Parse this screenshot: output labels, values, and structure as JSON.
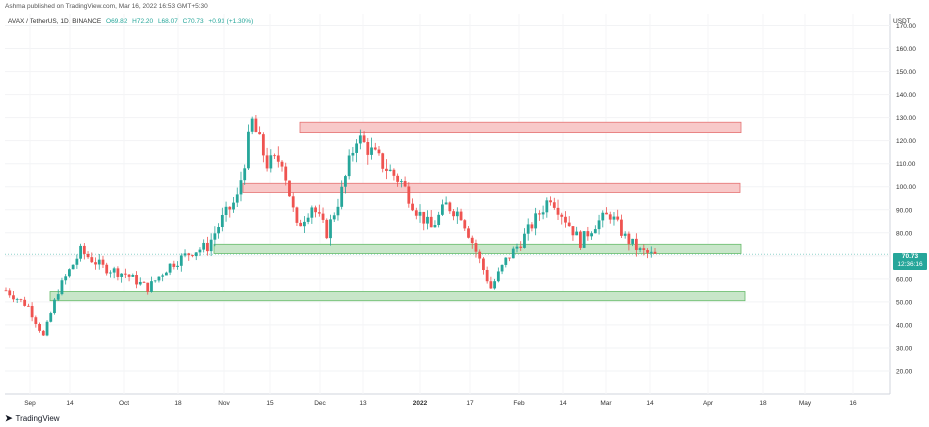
{
  "header": {
    "published": "Ashma published on TradingView.com, Mar 16, 2022 16:53 GMT+5:30"
  },
  "legend": {
    "symbol": "AVAX / TetherUS, 1D, BINANCE",
    "open": "O69.82",
    "high": "H72.20",
    "low": "L68.07",
    "close": "C70.73",
    "change": "+0.91 (+1.30%)"
  },
  "currency": "USDT",
  "last_price": {
    "value": "70.73",
    "countdown": "12:36:16"
  },
  "footer": {
    "brand": "TradingView"
  },
  "colors": {
    "up": "#26a69a",
    "down": "#ef5350",
    "resistance_zone": "#f8c9c9",
    "support_zone": "#c8e6c9"
  },
  "chart_data": {
    "type": "candlestick",
    "y_axis": {
      "min": 10,
      "max": 175,
      "ticks": [
        "20.00",
        "30.00",
        "40.00",
        "50.00",
        "60.00",
        "70.00",
        "80.00",
        "90.00",
        "100.00",
        "110.00",
        "120.00",
        "130.00",
        "140.00",
        "150.00",
        "160.00",
        "170.00"
      ]
    },
    "x_ticks": [
      "Sep",
      "14",
      "Oct",
      "18",
      "Nov",
      "15",
      "Dec",
      "13",
      "2022",
      "17",
      "Feb",
      "14",
      "Mar",
      "14",
      "Apr",
      "18",
      "May",
      "16"
    ],
    "zones": [
      {
        "kind": "resistance",
        "low": 123.5,
        "high": 128.0
      },
      {
        "kind": "resistance",
        "low": 97.5,
        "high": 101.5
      },
      {
        "kind": "support",
        "low": 71.0,
        "high": 75.0
      },
      {
        "kind": "support",
        "low": 50.5,
        "high": 54.5
      }
    ],
    "approx_close_path": [
      [
        0,
        55
      ],
      [
        6,
        48
      ],
      [
        10,
        35
      ],
      [
        14,
        55
      ],
      [
        20,
        72
      ],
      [
        26,
        65
      ],
      [
        32,
        62
      ],
      [
        38,
        56
      ],
      [
        44,
        66
      ],
      [
        50,
        72
      ],
      [
        54,
        74
      ],
      [
        58,
        86
      ],
      [
        62,
        95
      ],
      [
        66,
        128
      ],
      [
        70,
        110
      ],
      [
        74,
        112
      ],
      [
        78,
        82
      ],
      [
        82,
        92
      ],
      [
        86,
        80
      ],
      [
        90,
        98
      ],
      [
        94,
        122
      ],
      [
        98,
        115
      ],
      [
        102,
        108
      ],
      [
        106,
        102
      ],
      [
        110,
        90
      ],
      [
        114,
        82
      ],
      [
        118,
        92
      ],
      [
        122,
        88
      ],
      [
        126,
        72
      ],
      [
        130,
        56
      ],
      [
        134,
        68
      ],
      [
        138,
        76
      ],
      [
        142,
        86
      ],
      [
        146,
        96
      ],
      [
        150,
        86
      ],
      [
        154,
        76
      ],
      [
        158,
        84
      ],
      [
        162,
        88
      ],
      [
        166,
        78
      ],
      [
        170,
        72
      ],
      [
        174,
        70
      ]
    ],
    "last": 70.73
  }
}
